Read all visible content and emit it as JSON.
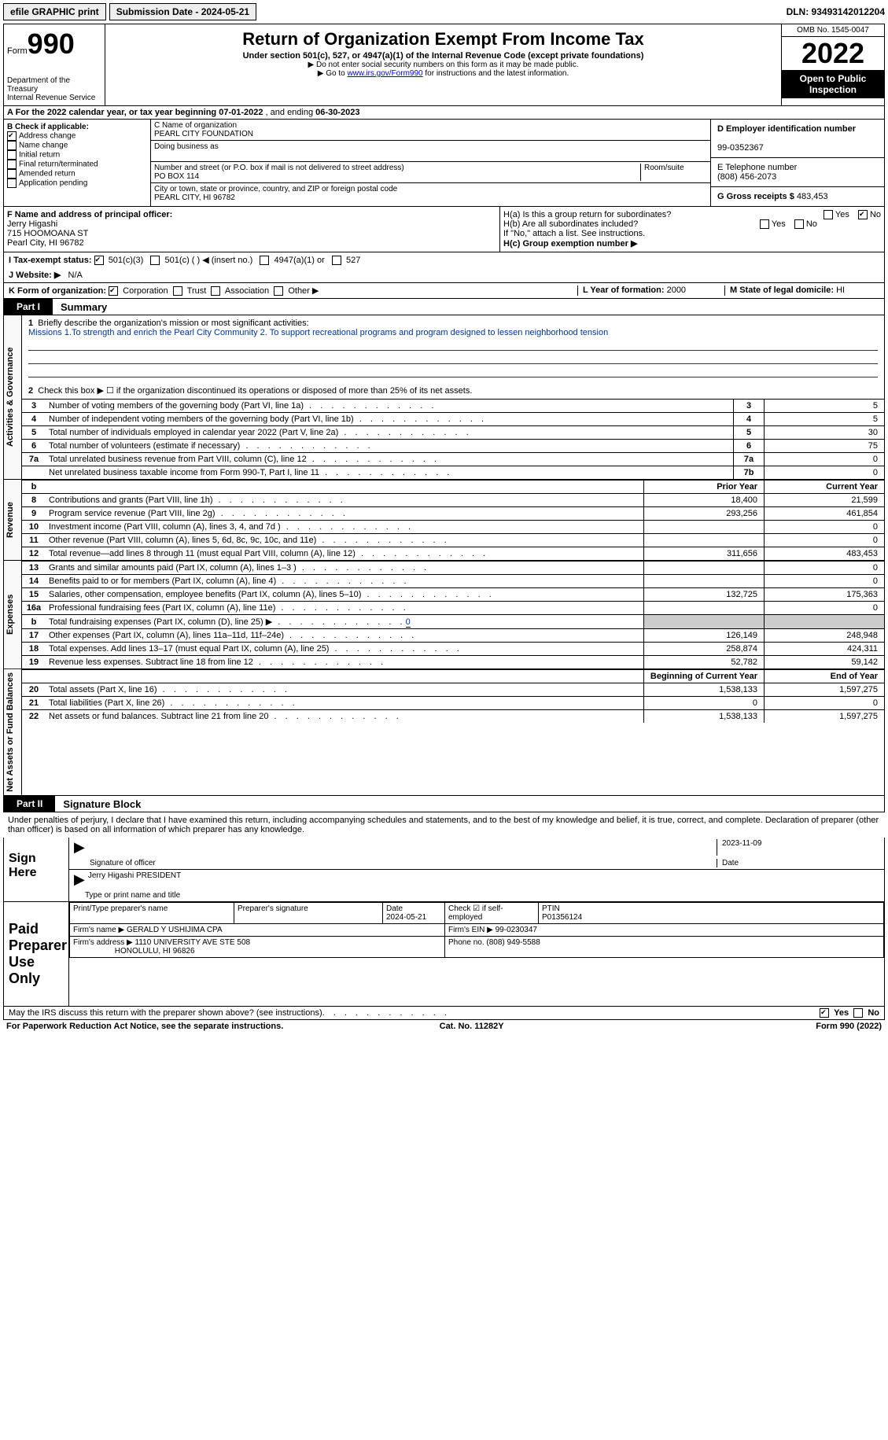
{
  "topbar": {
    "efile": "efile GRAPHIC print",
    "submission": "Submission Date - 2024-05-21",
    "dln": "DLN: 93493142012204"
  },
  "header": {
    "form": "Form",
    "form_num": "990",
    "title": "Return of Organization Exempt From Income Tax",
    "sub": "Under section 501(c), 527, or 4947(a)(1) of the Internal Revenue Code (except private foundations)",
    "l1": "Do not enter social security numbers on this form as it may be made public.",
    "l2": "Go to",
    "link": "www.irs.gov/Form990",
    "l2b": "for instructions and the latest information.",
    "dept1": "Department of the Treasury",
    "dept2": "Internal Revenue Service",
    "omb": "OMB No. 1545-0047",
    "year": "2022",
    "open": "Open to Public Inspection"
  },
  "secA": {
    "text": "A For the 2022 calendar year, or tax year beginning",
    "begin": "07-01-2022",
    "mid": ", and ending",
    "end": "06-30-2023"
  },
  "secB": {
    "head": "B Check if applicable:",
    "items": [
      "Address change",
      "Name change",
      "Initial return",
      "Final return/terminated",
      "Amended return",
      "Application pending"
    ],
    "checked": [
      true,
      false,
      false,
      false,
      false,
      false
    ]
  },
  "secC": {
    "name_lbl": "C Name of organization",
    "name": "PEARL CITY FOUNDATION",
    "dba": "Doing business as",
    "addr_lbl": "Number and street (or P.O. box if mail is not delivered to street address)",
    "room": "Room/suite",
    "addr": "PO BOX 114",
    "city_lbl": "City or town, state or province, country, and ZIP or foreign postal code",
    "city": "PEARL CITY, HI   96782"
  },
  "secD": {
    "ein_lbl": "D Employer identification number",
    "ein": "99-0352367",
    "phone_lbl": "E Telephone number",
    "phone": "(808) 456-2073",
    "gross_lbl": "G Gross receipts $",
    "gross": "483,453"
  },
  "secF": {
    "lbl": "F Name and address of principal officer:",
    "name": "Jerry Higashi",
    "addr1": "715 HOOMOANA ST",
    "addr2": "Pearl City, HI   96782"
  },
  "secH": {
    "a": "H(a)  Is this a group return for subordinates?",
    "b": "H(b)  Are all subordinates included?",
    "no": "If \"No,\" attach a list. See instructions.",
    "c": "H(c)  Group exemption number ▶",
    "yes": "Yes",
    "nolbl": "No"
  },
  "secI": {
    "lbl": "I  Tax-exempt status:",
    "opts": [
      "501(c)(3)",
      "501(c) (  ) ◀ (insert no.)",
      "4947(a)(1) or",
      "527"
    ]
  },
  "secJ": {
    "lbl": "J  Website: ▶",
    "val": "N/A"
  },
  "secK": {
    "lbl": "K Form of organization:",
    "opts": [
      "Corporation",
      "Trust",
      "Association",
      "Other ▶"
    ]
  },
  "secL": {
    "lbl": "L Year of formation:",
    "val": "2000"
  },
  "secM": {
    "lbl": "M State of legal domicile:",
    "val": "HI"
  },
  "part1": {
    "tab": "Part I",
    "title": "Summary"
  },
  "mission": {
    "lbl": "Briefly describe the organization's mission or most significant activities:",
    "text": "Missions 1.To strength and enrich the Pearl City Community 2. To support recreational programs and program designed to lessen neighborhood tension"
  },
  "line2": "Check this box ▶ ☐ if the organization discontinued its operations or disposed of more than 25% of its net assets.",
  "rows_gov": [
    {
      "n": "3",
      "d": "Number of voting members of the governing body (Part VI, line 1a)",
      "box": "3",
      "v": "5"
    },
    {
      "n": "4",
      "d": "Number of independent voting members of the governing body (Part VI, line 1b)",
      "box": "4",
      "v": "5"
    },
    {
      "n": "5",
      "d": "Total number of individuals employed in calendar year 2022 (Part V, line 2a)",
      "box": "5",
      "v": "30"
    },
    {
      "n": "6",
      "d": "Total number of volunteers (estimate if necessary)",
      "box": "6",
      "v": "75"
    },
    {
      "n": "7a",
      "d": "Total unrelated business revenue from Part VIII, column (C), line 12",
      "box": "7a",
      "v": "0"
    },
    {
      "n": "",
      "d": "Net unrelated business taxable income from Form 990-T, Part I, line 11",
      "box": "7b",
      "v": "0"
    }
  ],
  "col_heads": {
    "py": "Prior Year",
    "cy": "Current Year"
  },
  "rows_rev": [
    {
      "n": "8",
      "d": "Contributions and grants (Part VIII, line 1h)",
      "py": "18,400",
      "cy": "21,599"
    },
    {
      "n": "9",
      "d": "Program service revenue (Part VIII, line 2g)",
      "py": "293,256",
      "cy": "461,854"
    },
    {
      "n": "10",
      "d": "Investment income (Part VIII, column (A), lines 3, 4, and 7d )",
      "py": "",
      "cy": "0"
    },
    {
      "n": "11",
      "d": "Other revenue (Part VIII, column (A), lines 5, 6d, 8c, 9c, 10c, and 11e)",
      "py": "",
      "cy": "0"
    },
    {
      "n": "12",
      "d": "Total revenue—add lines 8 through 11 (must equal Part VIII, column (A), line 12)",
      "py": "311,656",
      "cy": "483,453"
    }
  ],
  "rows_exp": [
    {
      "n": "13",
      "d": "Grants and similar amounts paid (Part IX, column (A), lines 1–3 )",
      "py": "",
      "cy": "0"
    },
    {
      "n": "14",
      "d": "Benefits paid to or for members (Part IX, column (A), line 4)",
      "py": "",
      "cy": "0"
    },
    {
      "n": "15",
      "d": "Salaries, other compensation, employee benefits (Part IX, column (A), lines 5–10)",
      "py": "132,725",
      "cy": "175,363"
    },
    {
      "n": "16a",
      "d": "Professional fundraising fees (Part IX, column (A), line 11e)",
      "py": "",
      "cy": "0"
    },
    {
      "n": "b",
      "d": "Total fundraising expenses (Part IX, column (D), line 25) ▶",
      "py": "SHADE",
      "cy": "SHADE",
      "extra": "0"
    },
    {
      "n": "17",
      "d": "Other expenses (Part IX, column (A), lines 11a–11d, 11f–24e)",
      "py": "126,149",
      "cy": "248,948"
    },
    {
      "n": "18",
      "d": "Total expenses. Add lines 13–17 (must equal Part IX, column (A), line 25)",
      "py": "258,874",
      "cy": "424,311"
    },
    {
      "n": "19",
      "d": "Revenue less expenses. Subtract line 18 from line 12",
      "py": "52,782",
      "cy": "59,142"
    }
  ],
  "col_heads2": {
    "b": "Beginning of Current Year",
    "e": "End of Year"
  },
  "rows_na": [
    {
      "n": "20",
      "d": "Total assets (Part X, line 16)",
      "b": "1,538,133",
      "e": "1,597,275"
    },
    {
      "n": "21",
      "d": "Total liabilities (Part X, line 26)",
      "b": "0",
      "e": "0"
    },
    {
      "n": "22",
      "d": "Net assets or fund balances. Subtract line 21 from line 20",
      "b": "1,538,133",
      "e": "1,597,275"
    }
  ],
  "part2": {
    "tab": "Part II",
    "title": "Signature Block"
  },
  "sig_decl": "Under penalties of perjury, I declare that I have examined this return, including accompanying schedules and statements, and to the best of my knowledge and belief, it is true, correct, and complete. Declaration of preparer (other than officer) is based on all information of which preparer has any knowledge.",
  "sign_here": "Sign Here",
  "sig_officer": "Signature of officer",
  "sig_date": "2023-11-09",
  "sig_date_lbl": "Date",
  "sig_name": "Jerry Higashi PRESIDENT",
  "sig_name_lbl": "Type or print name and title",
  "paid": {
    "lbl": "Paid Preparer Use Only",
    "h1": "Print/Type preparer's name",
    "h2": "Preparer's signature",
    "h3": "Date",
    "date": "2024-05-21",
    "h4": "Check ☑ if self-employed",
    "h5": "PTIN",
    "ptin": "P01356124",
    "firm_lbl": "Firm's name      ▶",
    "firm": "GERALD Y USHIJIMA CPA",
    "ein_lbl": "Firm's EIN ▶",
    "ein": "99-0230347",
    "addr_lbl": "Firm's address ▶",
    "addr1": "1110 UNIVERSITY AVE STE 508",
    "addr2": "HONOLULU, HI   96826",
    "phone_lbl": "Phone no.",
    "phone": "(808) 949-5588"
  },
  "discuss": "May the IRS discuss this return with the preparer shown above? (see instructions)",
  "footer": {
    "pra": "For Paperwork Reduction Act Notice, see the separate instructions.",
    "cat": "Cat. No. 11282Y",
    "form": "Form 990 (2022)"
  },
  "vlabels": {
    "gov": "Activities & Governance",
    "rev": "Revenue",
    "exp": "Expenses",
    "na": "Net Assets or Fund Balances"
  }
}
